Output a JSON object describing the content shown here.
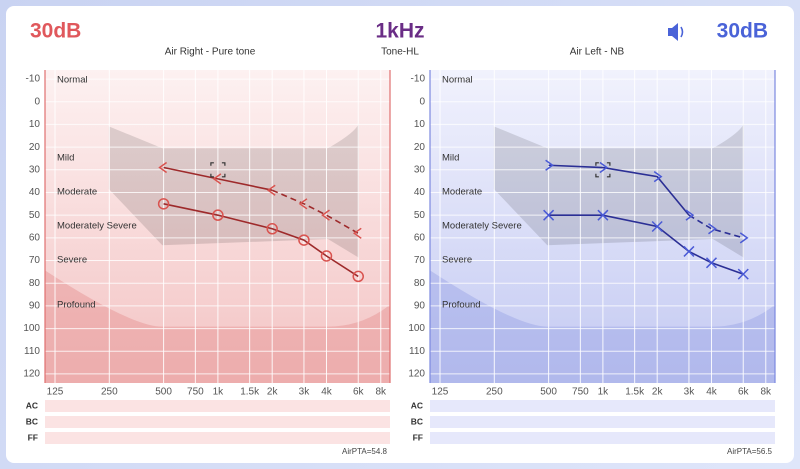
{
  "header": {
    "right_ear_level": "30dB",
    "frequency": "1kHz",
    "left_ear_level": "30dB",
    "mode": "Tone-HL"
  },
  "chart_data": [
    {
      "type": "line",
      "title": "Air Right - Pure tone",
      "x": [
        500,
        1000,
        2000,
        3000,
        4000,
        6000
      ],
      "series": [
        {
          "color": "#9e2a2b",
          "marker": "circle",
          "marker_color": "#d9534f",
          "values": [
            45,
            50,
            56,
            61,
            68,
            77
          ],
          "segment_styles": [
            "solid",
            "solid",
            "solid",
            "solid",
            "solid"
          ]
        },
        {
          "color": "#9e2a2b",
          "marker": "<",
          "marker_color": "#d9534f",
          "values": [
            29,
            34,
            39,
            45,
            50,
            58
          ],
          "segment_styles": [
            "solid",
            "solid",
            "dashed",
            "dashed",
            "dashed"
          ]
        }
      ],
      "cursor": {
        "x": 1000,
        "y": 30
      },
      "xlim": [
        110,
        9000
      ],
      "log_x": true,
      "xticks": [
        125,
        250,
        500,
        750,
        {
          "value": 1000,
          "label": "1k"
        },
        {
          "value": 1500,
          "label": "1.5k"
        },
        {
          "value": 2000,
          "label": "2k"
        },
        {
          "value": 3000,
          "label": "3k"
        },
        {
          "value": 4000,
          "label": "4k"
        },
        {
          "value": 6000,
          "label": "6k"
        },
        {
          "value": 8000,
          "label": "8k"
        }
      ],
      "ylim": [
        -14,
        124
      ],
      "y_reversed": true,
      "yticks": [
        -10,
        0,
        10,
        20,
        30,
        40,
        50,
        60,
        70,
        80,
        90,
        100,
        110,
        120
      ],
      "grid": true,
      "regions": [
        "Normal",
        "Mild",
        "Moderate",
        "Moderately Severe",
        "Severe",
        "Profound"
      ],
      "rows": [
        "AC",
        "BC",
        "FF"
      ],
      "footer": "AirPTA=54.8",
      "background_colors": [
        "#fdf1f1",
        "#f3c3c3"
      ],
      "region_color": "#e89a9a",
      "row_color": "#fbe3e3",
      "border_color": "#e07070"
    },
    {
      "type": "line",
      "title": "Air Left - NB",
      "x": [
        500,
        1000,
        2000,
        3000,
        4000,
        6000
      ],
      "series": [
        {
          "color": "#2b2f95",
          "marker": "x",
          "marker_color": "#4a5ad6",
          "values": [
            50,
            50,
            55,
            66,
            71,
            76
          ],
          "segment_styles": [
            "solid",
            "solid",
            "solid",
            "solid",
            "solid"
          ]
        },
        {
          "color": "#2b2f95",
          "marker": ">",
          "marker_color": "#4a5ad6",
          "values": [
            28,
            29,
            33,
            50,
            56,
            60
          ],
          "segment_styles": [
            "solid",
            "solid",
            "solid",
            "dashed",
            "dashed"
          ]
        }
      ],
      "cursor": {
        "x": 1000,
        "y": 30
      },
      "xlim": [
        110,
        9000
      ],
      "log_x": true,
      "xticks": [
        125,
        250,
        500,
        750,
        {
          "value": 1000,
          "label": "1k"
        },
        {
          "value": 1500,
          "label": "1.5k"
        },
        {
          "value": 2000,
          "label": "2k"
        },
        {
          "value": 3000,
          "label": "3k"
        },
        {
          "value": 4000,
          "label": "4k"
        },
        {
          "value": 6000,
          "label": "6k"
        },
        {
          "value": 8000,
          "label": "8k"
        }
      ],
      "ylim": [
        -14,
        124
      ],
      "y_reversed": true,
      "yticks": [
        -10,
        0,
        10,
        20,
        30,
        40,
        50,
        60,
        70,
        80,
        90,
        100,
        110,
        120
      ],
      "grid": true,
      "regions": [
        "Normal",
        "Mild",
        "Moderate",
        "Moderately Severe",
        "Severe",
        "Profound"
      ],
      "rows": [
        "AC",
        "BC",
        "FF"
      ],
      "footer": "AirPTA=56.5",
      "background_colors": [
        "#f1f2fd",
        "#c3c9f2"
      ],
      "region_color": "#a2abe8",
      "row_color": "#e6e8fb",
      "border_color": "#7c88e0"
    }
  ]
}
